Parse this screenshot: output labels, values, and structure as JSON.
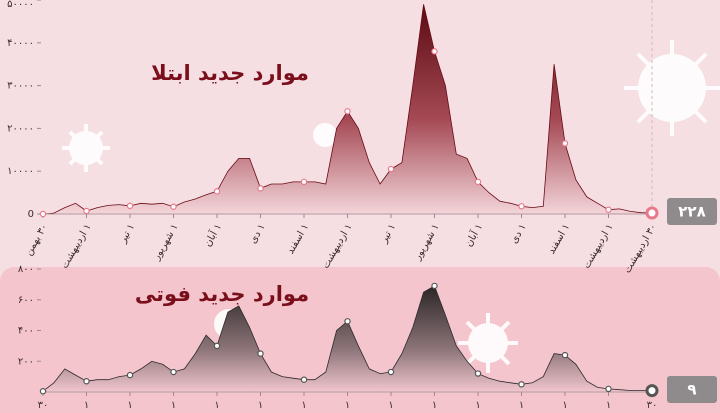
{
  "chart_data": [
    {
      "type": "area",
      "title": "موارد جدید ابتلا",
      "categories": [
        "۳۰ بهمن",
        null,
        null,
        null,
        "۱ اردیبهشت",
        null,
        null,
        null,
        "۱ تیر",
        null,
        null,
        null,
        "۱ شهریور",
        null,
        null,
        null,
        "۱ آبان",
        null,
        null,
        null,
        "۱ دی",
        null,
        null,
        null,
        "۱ اسفند",
        null,
        null,
        null,
        "۱ اردیبهشت",
        null,
        null,
        null,
        "۱ تیر",
        null,
        null,
        null,
        "۱ شهریور",
        null,
        null,
        null,
        "۱ آبان",
        null,
        null,
        null,
        "۱ دی",
        null,
        null,
        null,
        "۱ اسفند",
        null,
        null,
        null,
        "۱ اردیبهشت",
        null,
        null,
        null,
        "۳۰ اردیبهشت"
      ],
      "values": [
        0,
        200,
        1500,
        2500,
        700,
        1500,
        2000,
        2200,
        1900,
        2500,
        2300,
        2500,
        1700,
        2800,
        3500,
        4500,
        5300,
        10000,
        13000,
        13000,
        6000,
        7000,
        7000,
        7500,
        7500,
        7500,
        7000,
        20000,
        24000,
        20000,
        12000,
        7000,
        10500,
        12000,
        30000,
        49000,
        38000,
        30000,
        14000,
        13000,
        7500,
        5000,
        3000,
        2500,
        1800,
        1500,
        1800,
        35000,
        16500,
        8000,
        4000,
        2500,
        1000,
        1200,
        600,
        300,
        228
      ],
      "value_labels": [
        null,
        null,
        null,
        null,
        null,
        null,
        null,
        null,
        null,
        null,
        null,
        null,
        null,
        null,
        null,
        null,
        null,
        null,
        null,
        null,
        null,
        null,
        null,
        null,
        null,
        null,
        null,
        null,
        null,
        null,
        null,
        null,
        null,
        null,
        null,
        null,
        null,
        null,
        null,
        null,
        null,
        null,
        null,
        null,
        null,
        null,
        null,
        null,
        null,
        null,
        null,
        null,
        null,
        null,
        null,
        null,
        "۲۲۸"
      ],
      "color": "#6b0b15",
      "ylim": [
        0,
        50000
      ],
      "yticks": [
        0,
        {
          "value": 10000,
          "label": "۱۰۰۰۰"
        },
        {
          "value": 20000,
          "label": "۲۰۰۰۰"
        },
        {
          "value": 30000,
          "label": "۳۰۰۰۰"
        },
        {
          "value": 40000,
          "label": "۴۰۰۰۰"
        },
        {
          "value": 50000,
          "label": "۵۰۰۰۰"
        }
      ]
    },
    {
      "type": "area",
      "title": "موارد جدید فوتی",
      "categories": [
        "۳۰",
        null,
        null,
        null,
        "۱",
        null,
        null,
        null,
        "۱",
        null,
        null,
        null,
        "۱",
        null,
        null,
        null,
        "۱",
        null,
        null,
        null,
        "۱",
        null,
        null,
        null,
        "۱",
        null,
        null,
        null,
        "۱",
        null,
        null,
        null,
        "۱",
        null,
        null,
        null,
        "۱",
        null,
        null,
        null,
        "۱",
        null,
        null,
        null,
        "۱",
        null,
        null,
        null,
        "۱",
        null,
        null,
        null,
        "۱",
        null,
        null,
        null,
        "۳۰"
      ],
      "values": [
        5,
        60,
        150,
        110,
        70,
        80,
        80,
        100,
        110,
        150,
        200,
        180,
        130,
        150,
        250,
        370,
        300,
        520,
        560,
        420,
        250,
        130,
        100,
        90,
        80,
        80,
        130,
        400,
        460,
        300,
        150,
        120,
        130,
        250,
        420,
        650,
        690,
        500,
        300,
        200,
        120,
        90,
        70,
        60,
        50,
        60,
        100,
        250,
        240,
        180,
        70,
        30,
        20,
        15,
        10,
        10,
        9
      ],
      "value_labels": [
        null,
        null,
        null,
        null,
        null,
        null,
        null,
        null,
        null,
        null,
        null,
        null,
        null,
        null,
        null,
        null,
        null,
        null,
        null,
        null,
        null,
        null,
        null,
        null,
        null,
        null,
        null,
        null,
        null,
        null,
        null,
        null,
        null,
        null,
        null,
        null,
        null,
        null,
        null,
        null,
        null,
        null,
        null,
        null,
        null,
        null,
        null,
        null,
        null,
        null,
        null,
        null,
        null,
        null,
        null,
        null,
        "۹"
      ],
      "color": "#2e2a2b",
      "ylim": [
        0,
        800
      ],
      "yticks": [
        {
          "value": 200,
          "label": "۲۰۰"
        },
        {
          "value": 400,
          "label": "۴۰۰"
        },
        {
          "value": 600,
          "label": "۶۰۰"
        },
        {
          "value": 800,
          "label": "۸۰۰"
        }
      ]
    }
  ]
}
